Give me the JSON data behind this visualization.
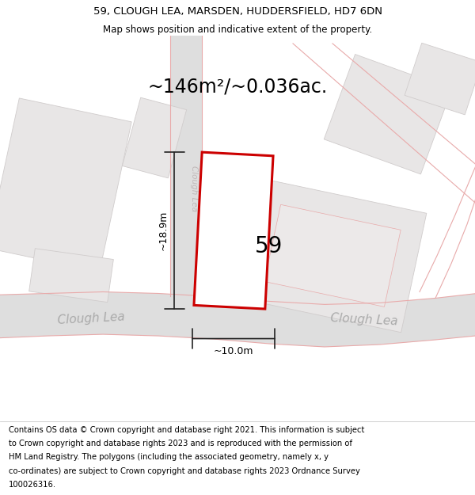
{
  "title_line1": "59, CLOUGH LEA, MARSDEN, HUDDERSFIELD, HD7 6DN",
  "title_line2": "Map shows position and indicative extent of the property.",
  "area_text": "~146m²/~0.036ac.",
  "property_number": "59",
  "dim_height": "~18.9m",
  "dim_width": "~10.0m",
  "bg_color": "#f7f6f6",
  "road_fill": "#dedede",
  "road_edge": "#cccccc",
  "building_fill": "#e8e6e6",
  "building_edge": "#d0cccc",
  "property_fill": "#ffffff",
  "property_edge": "#cc0000",
  "faint_line": "#e8aaaa",
  "dim_color": "#222222",
  "road_label_color": "#aaaaaa",
  "title_fontsize": 9.5,
  "subtitle_fontsize": 8.5,
  "area_fontsize": 17,
  "number_fontsize": 20,
  "dim_fontsize": 9,
  "road_label_fontsize": 11,
  "vert_label_fontsize": 7.5,
  "footer_fontsize": 7.2,
  "footer_lines": [
    "Contains OS data © Crown copyright and database right 2021. This information is subject",
    "to Crown copyright and database rights 2023 and is reproduced with the permission of",
    "HM Land Registry. The polygons (including the associated geometry, namely x, y",
    "co-ordinates) are subject to Crown copyright and database rights 2023 Ordnance Survey",
    "100026316."
  ]
}
